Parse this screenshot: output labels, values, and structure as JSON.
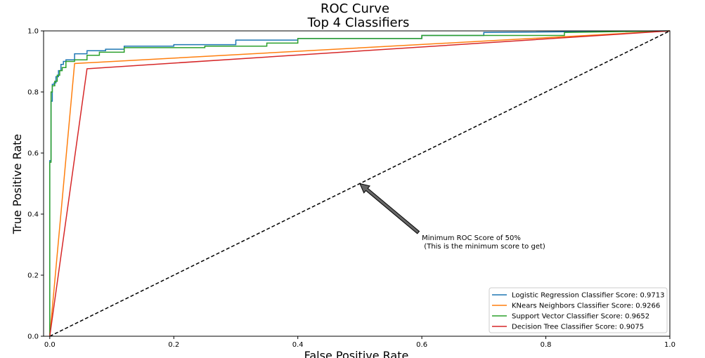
{
  "chart_data": {
    "type": "line",
    "title_line1": "ROC Curve",
    "title_line2": "Top 4 Classifiers",
    "xlabel": "False Positive Rate",
    "ylabel": "True Positive Rate",
    "xlim": [
      -0.01,
      1.0
    ],
    "ylim": [
      0.0,
      1.0
    ],
    "x_ticks": [
      "0.0",
      "0.2",
      "0.4",
      "0.6",
      "0.8",
      "1.0"
    ],
    "y_ticks": [
      "0.0",
      "0.2",
      "0.4",
      "0.6",
      "0.8",
      "1.0"
    ],
    "grid": false,
    "legend_position": "lower-right",
    "series": [
      {
        "name": "Logistic Regression Classifier Score: 0.9713",
        "color": "#1f77b4",
        "x": [
          0.0,
          0.0,
          0.002,
          0.002,
          0.004,
          0.004,
          0.007,
          0.007,
          0.01,
          0.01,
          0.014,
          0.014,
          0.018,
          0.018,
          0.022,
          0.022,
          0.026,
          0.026,
          0.04,
          0.04,
          0.06,
          0.06,
          0.09,
          0.09,
          0.12,
          0.12,
          0.2,
          0.2,
          0.3,
          0.3,
          0.4,
          0.4,
          0.6,
          0.6,
          0.7,
          0.7,
          1.0
        ],
        "y": [
          0.0,
          0.575,
          0.575,
          0.77,
          0.77,
          0.825,
          0.825,
          0.83,
          0.83,
          0.85,
          0.85,
          0.87,
          0.87,
          0.89,
          0.89,
          0.9,
          0.9,
          0.905,
          0.905,
          0.925,
          0.925,
          0.935,
          0.935,
          0.94,
          0.94,
          0.95,
          0.95,
          0.955,
          0.955,
          0.97,
          0.97,
          0.975,
          0.975,
          0.985,
          0.985,
          0.995,
          1.0
        ]
      },
      {
        "name": "KNears Neighbors Classifier Score: 0.9266",
        "color": "#ff7f0e",
        "x": [
          0.0,
          0.04,
          1.0
        ],
        "y": [
          0.0,
          0.893,
          1.0
        ]
      },
      {
        "name": "Support Vector Classifier Score: 0.9652",
        "color": "#2ca02c",
        "x": [
          0.0,
          0.0,
          0.002,
          0.002,
          0.004,
          0.004,
          0.008,
          0.008,
          0.012,
          0.012,
          0.016,
          0.016,
          0.02,
          0.02,
          0.026,
          0.026,
          0.04,
          0.04,
          0.06,
          0.06,
          0.08,
          0.08,
          0.12,
          0.12,
          0.25,
          0.25,
          0.35,
          0.35,
          0.4,
          0.4,
          0.6,
          0.6,
          0.83,
          0.83,
          1.0
        ],
        "y": [
          0.0,
          0.57,
          0.57,
          0.8,
          0.8,
          0.82,
          0.82,
          0.835,
          0.835,
          0.855,
          0.855,
          0.87,
          0.87,
          0.88,
          0.88,
          0.9,
          0.9,
          0.905,
          0.905,
          0.92,
          0.92,
          0.93,
          0.93,
          0.945,
          0.945,
          0.95,
          0.95,
          0.96,
          0.96,
          0.975,
          0.975,
          0.985,
          0.985,
          0.995,
          1.0
        ]
      },
      {
        "name": "Decision Tree Classifier Score: 0.9075",
        "color": "#d62728",
        "x": [
          0.0,
          0.06,
          1.0
        ],
        "y": [
          0.0,
          0.876,
          1.0
        ]
      }
    ],
    "reference_line": {
      "x": [
        0.0,
        1.0
      ],
      "y": [
        0.0,
        1.0
      ],
      "style": "dashed",
      "color": "#000000"
    },
    "annotation": {
      "text_line1": "Minimum ROC Score of 50%",
      "text_line2": " (This is the minimum score to get)",
      "text_at": [
        0.6,
        0.31
      ],
      "arrow_to": [
        0.5,
        0.5
      ],
      "arrow_color": "#666666"
    }
  }
}
